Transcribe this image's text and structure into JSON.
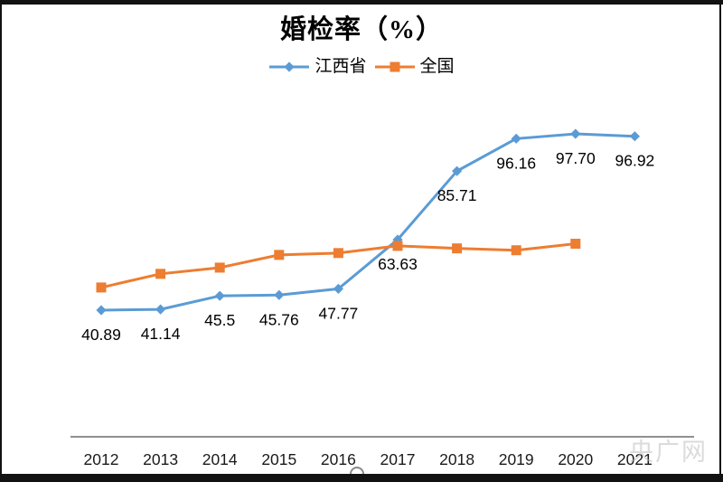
{
  "title": "婚检率（%）",
  "watermark": "央广网",
  "legend": [
    {
      "name": "江西省",
      "color": "#5B9BD5",
      "marker": "diamond"
    },
    {
      "name": "全国",
      "color": "#ED7D31",
      "marker": "square"
    }
  ],
  "colors": {
    "jiangxi_blue": "#5B9BD5",
    "national_orange": "#ED7D31",
    "axis_gray": "#808080",
    "label_black": "#1a1a1a"
  },
  "chart_data": {
    "type": "line",
    "title": "婚检率（%）",
    "xlabel": "",
    "ylabel": "",
    "grid": false,
    "legend_position": "top",
    "ylim": [
      35,
      105
    ],
    "categories": [
      "2012",
      "2013",
      "2014",
      "2015",
      "2016",
      "2017",
      "2018",
      "2019",
      "2020",
      "2021"
    ],
    "series": [
      {
        "name": "江西省",
        "color": "#5B9BD5",
        "marker": "diamond",
        "values": [
          40.89,
          41.14,
          45.5,
          45.76,
          47.77,
          63.63,
          85.71,
          96.16,
          97.7,
          96.92
        ],
        "labels": [
          "40.89",
          "41.14",
          "45.5",
          "45.76",
          "47.77",
          "63.63",
          "85.71",
          "96.16",
          "97.70",
          "96.92"
        ]
      },
      {
        "name": "全国",
        "color": "#ED7D31",
        "marker": "square",
        "values": [
          48.2,
          52.6,
          54.6,
          58.7,
          59.3,
          61.6,
          60.8,
          60.2,
          62.3,
          null
        ],
        "labels": []
      }
    ]
  }
}
